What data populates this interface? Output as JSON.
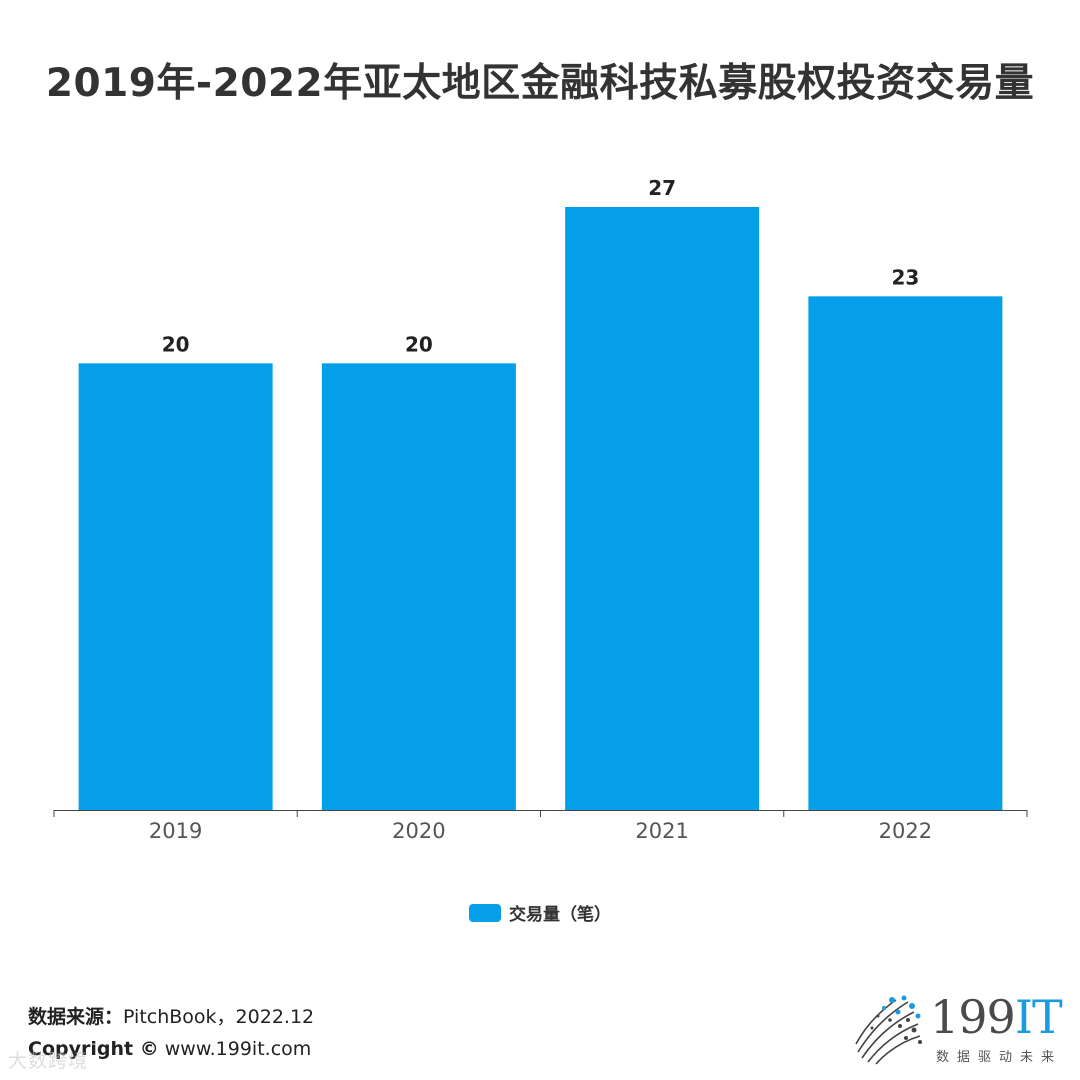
{
  "title": "2019年-2022年亚太地区金融科技私募股权投资交易量",
  "chart_data": {
    "type": "bar",
    "categories": [
      "2019",
      "2020",
      "2021",
      "2022"
    ],
    "series": [
      {
        "name": "交易量（笔）",
        "values": [
          20,
          20,
          27,
          23
        ]
      }
    ],
    "ylim": [
      0,
      30
    ],
    "grid": false,
    "legend": "bottom",
    "bar_color": "#049fe8"
  },
  "legend": {
    "label": "交易量（笔）",
    "color": "#049fe8"
  },
  "footer": {
    "source_label": "数据来源：",
    "source_value": "PitchBook，2022.12",
    "copyright_label": "Copyright ©",
    "copyright_value": "www.199it.com"
  },
  "watermark": "大数跨境",
  "brand": {
    "name_num": "199",
    "name_it": "IT",
    "tagline": "数据驱动未来"
  }
}
